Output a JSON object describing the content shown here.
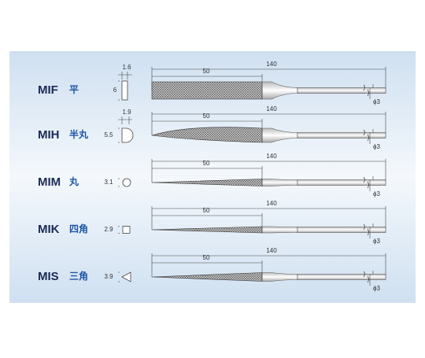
{
  "rows": [
    {
      "code": "MIF",
      "name": "平",
      "section_width": 1.6,
      "section_height": 6,
      "teeth_length": 50,
      "total_length": 140,
      "shank": "ϕ3"
    },
    {
      "code": "MIH",
      "name": "半丸",
      "section_width": 1.9,
      "section_height": 5.5,
      "teeth_length": 50,
      "total_length": 140,
      "shank": "ϕ3"
    },
    {
      "code": "MIM",
      "name": "丸",
      "section_height": 3.1,
      "teeth_length": 50,
      "total_length": 140,
      "shank": "ϕ3"
    },
    {
      "code": "MIK",
      "name": "四角",
      "section_height": 2.9,
      "teeth_length": 50,
      "total_length": 140,
      "shank": "ϕ3"
    },
    {
      "code": "MIS",
      "name": "三角",
      "section_height": 3.9,
      "teeth_length": 50,
      "total_length": 140,
      "shank": "ϕ3"
    }
  ]
}
